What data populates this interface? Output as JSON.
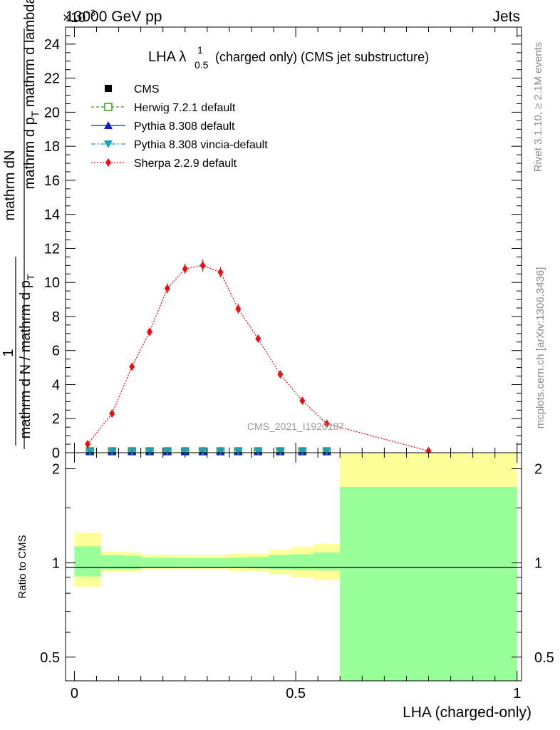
{
  "header": {
    "left": "13000 GeV pp",
    "right": "Jets",
    "exponent": "×10",
    "exponent_power": "−3"
  },
  "side_labels": {
    "rivet": "Rivet 3.1.10, ≥ 2.1M events",
    "mcplots": "mcplots.cern.ch [arXiv:1306.3436]"
  },
  "title": {
    "main": "LHA λ",
    "sup": "1",
    "sub": "0.5",
    "rest": "(charged only) (CMS jet substructure)"
  },
  "watermark": "CMS_2021_I1920187",
  "ylabel_main": {
    "numerator": "mathrm dN",
    "denominator_a": "mathrm d p",
    "denominator_sub": "T",
    "denominator_b": " mathrm d lambda",
    "prefix_top": "1",
    "prefix_bottom": "mathrm d N / mathrm d p",
    "prefix_sub": "T"
  },
  "ylabel_ratio": "Ratio to CMS",
  "xlabel": "LHA (charged-only)",
  "legend": [
    {
      "label": "CMS",
      "color": "#000000",
      "marker": "square-filled",
      "line": "none"
    },
    {
      "label": "Herwig 7.2.1 default",
      "color": "#3a9a1a",
      "marker": "square-open",
      "line": "dashed"
    },
    {
      "label": "Pythia 8.308 default",
      "color": "#1020c0",
      "marker": "triangle-up",
      "line": "solid"
    },
    {
      "label": "Pythia 8.308 vincia-default",
      "color": "#1a9fbf",
      "marker": "triangle-down",
      "line": "dashdot"
    },
    {
      "label": "Sherpa 2.2.9 default",
      "color": "#e81010",
      "marker": "diamond",
      "line": "dotted"
    }
  ],
  "chart_data": {
    "type": "line",
    "x_axis": {
      "range": [
        -0.02,
        1.01
      ],
      "ticks": [
        0,
        0.5,
        1
      ],
      "tick_labels": [
        "0",
        "0.5",
        "1"
      ]
    },
    "y_axis_main": {
      "range": [
        0,
        25
      ],
      "ticks": [
        0,
        2,
        4,
        6,
        8,
        10,
        12,
        14,
        16,
        18,
        20,
        22,
        24
      ],
      "tick_labels": [
        "0",
        "2",
        "4",
        "6",
        "8",
        "10",
        "12",
        "14",
        "16",
        "18",
        "20",
        "22",
        "24"
      ],
      "multiplier": "×10^-3"
    },
    "y_axis_ratio": {
      "scale": "log",
      "range": [
        0.42,
        2.25
      ],
      "ticks": [
        0.5,
        1,
        2
      ],
      "tick_labels": [
        "0.5",
        "1",
        "2"
      ]
    },
    "bins": [
      {
        "lo": 0.0,
        "hi": 0.06
      },
      {
        "lo": 0.06,
        "hi": 0.11
      },
      {
        "lo": 0.11,
        "hi": 0.15
      },
      {
        "lo": 0.15,
        "hi": 0.19
      },
      {
        "lo": 0.19,
        "hi": 0.23
      },
      {
        "lo": 0.23,
        "hi": 0.27
      },
      {
        "lo": 0.27,
        "hi": 0.31
      },
      {
        "lo": 0.31,
        "hi": 0.35
      },
      {
        "lo": 0.35,
        "hi": 0.39
      },
      {
        "lo": 0.39,
        "hi": 0.44
      },
      {
        "lo": 0.44,
        "hi": 0.49
      },
      {
        "lo": 0.49,
        "hi": 0.54
      },
      {
        "lo": 0.54,
        "hi": 0.6
      },
      {
        "lo": 0.6,
        "hi": 1.0
      }
    ],
    "series": [
      {
        "name": "CMS",
        "x": [
          0.035,
          0.085,
          0.13,
          0.17,
          0.21,
          0.25,
          0.29,
          0.33,
          0.37,
          0.415,
          0.465,
          0.515,
          0.57
        ],
        "y": [
          0.08,
          0.08,
          0.08,
          0.08,
          0.08,
          0.08,
          0.08,
          0.08,
          0.08,
          0.08,
          0.08,
          0.08,
          0.08
        ]
      },
      {
        "name": "Herwig 7.2.1 default",
        "x": [
          0.035,
          0.085,
          0.13,
          0.17,
          0.21,
          0.25,
          0.29,
          0.33,
          0.37,
          0.415,
          0.465,
          0.515,
          0.57
        ],
        "y": [
          0.08,
          0.08,
          0.08,
          0.08,
          0.08,
          0.08,
          0.08,
          0.08,
          0.08,
          0.08,
          0.08,
          0.08,
          0.08
        ]
      },
      {
        "name": "Pythia 8.308 default",
        "x": [
          0.035,
          0.085,
          0.13,
          0.17,
          0.21,
          0.25,
          0.29,
          0.33,
          0.37,
          0.415,
          0.465,
          0.515,
          0.57
        ],
        "y": [
          0.08,
          0.08,
          0.08,
          0.08,
          0.08,
          0.08,
          0.08,
          0.08,
          0.08,
          0.08,
          0.08,
          0.08,
          0.08
        ]
      },
      {
        "name": "Pythia 8.308 vincia-default",
        "x": [
          0.035,
          0.085,
          0.13,
          0.17,
          0.21,
          0.25,
          0.29,
          0.33,
          0.37,
          0.415,
          0.465,
          0.515,
          0.57
        ],
        "y": [
          0.08,
          0.08,
          0.08,
          0.08,
          0.08,
          0.08,
          0.08,
          0.08,
          0.08,
          0.08,
          0.08,
          0.08,
          0.08
        ]
      },
      {
        "name": "Sherpa 2.2.9 default",
        "x": [
          0.03,
          0.085,
          0.13,
          0.17,
          0.21,
          0.25,
          0.29,
          0.33,
          0.37,
          0.415,
          0.465,
          0.515,
          0.57,
          0.8
        ],
        "y": [
          0.5,
          2.3,
          5.05,
          7.1,
          9.65,
          10.8,
          11.0,
          10.6,
          8.45,
          6.7,
          4.6,
          3.05,
          1.7,
          0.1
        ],
        "yerr": [
          0.15,
          0.2,
          0.2,
          0.25,
          0.3,
          0.3,
          0.35,
          0.3,
          0.3,
          0.2,
          0.2,
          0.15,
          0.1,
          0.05
        ]
      }
    ],
    "ratio_bands": {
      "outer": [
        [
          0.84,
          1.25
        ],
        [
          0.935,
          1.085
        ],
        [
          0.935,
          1.08
        ],
        [
          0.955,
          1.06
        ],
        [
          0.955,
          1.06
        ],
        [
          0.955,
          1.06
        ],
        [
          0.955,
          1.06
        ],
        [
          0.955,
          1.06
        ],
        [
          0.94,
          1.07
        ],
        [
          0.94,
          1.07
        ],
        [
          0.92,
          1.1
        ],
        [
          0.9,
          1.125
        ],
        [
          0.88,
          1.15
        ],
        [
          0.38,
          2.24
        ]
      ],
      "inner": [
        [
          0.905,
          1.13
        ],
        [
          0.955,
          1.06
        ],
        [
          0.955,
          1.055
        ],
        [
          0.965,
          1.04
        ],
        [
          0.965,
          1.04
        ],
        [
          0.97,
          1.035
        ],
        [
          0.97,
          1.035
        ],
        [
          0.97,
          1.035
        ],
        [
          0.965,
          1.04
        ],
        [
          0.96,
          1.045
        ],
        [
          0.955,
          1.06
        ],
        [
          0.95,
          1.065
        ],
        [
          0.945,
          1.08
        ],
        [
          0.38,
          1.75
        ]
      ],
      "outer_color": "#ffff99",
      "inner_color": "#99ff99"
    }
  }
}
